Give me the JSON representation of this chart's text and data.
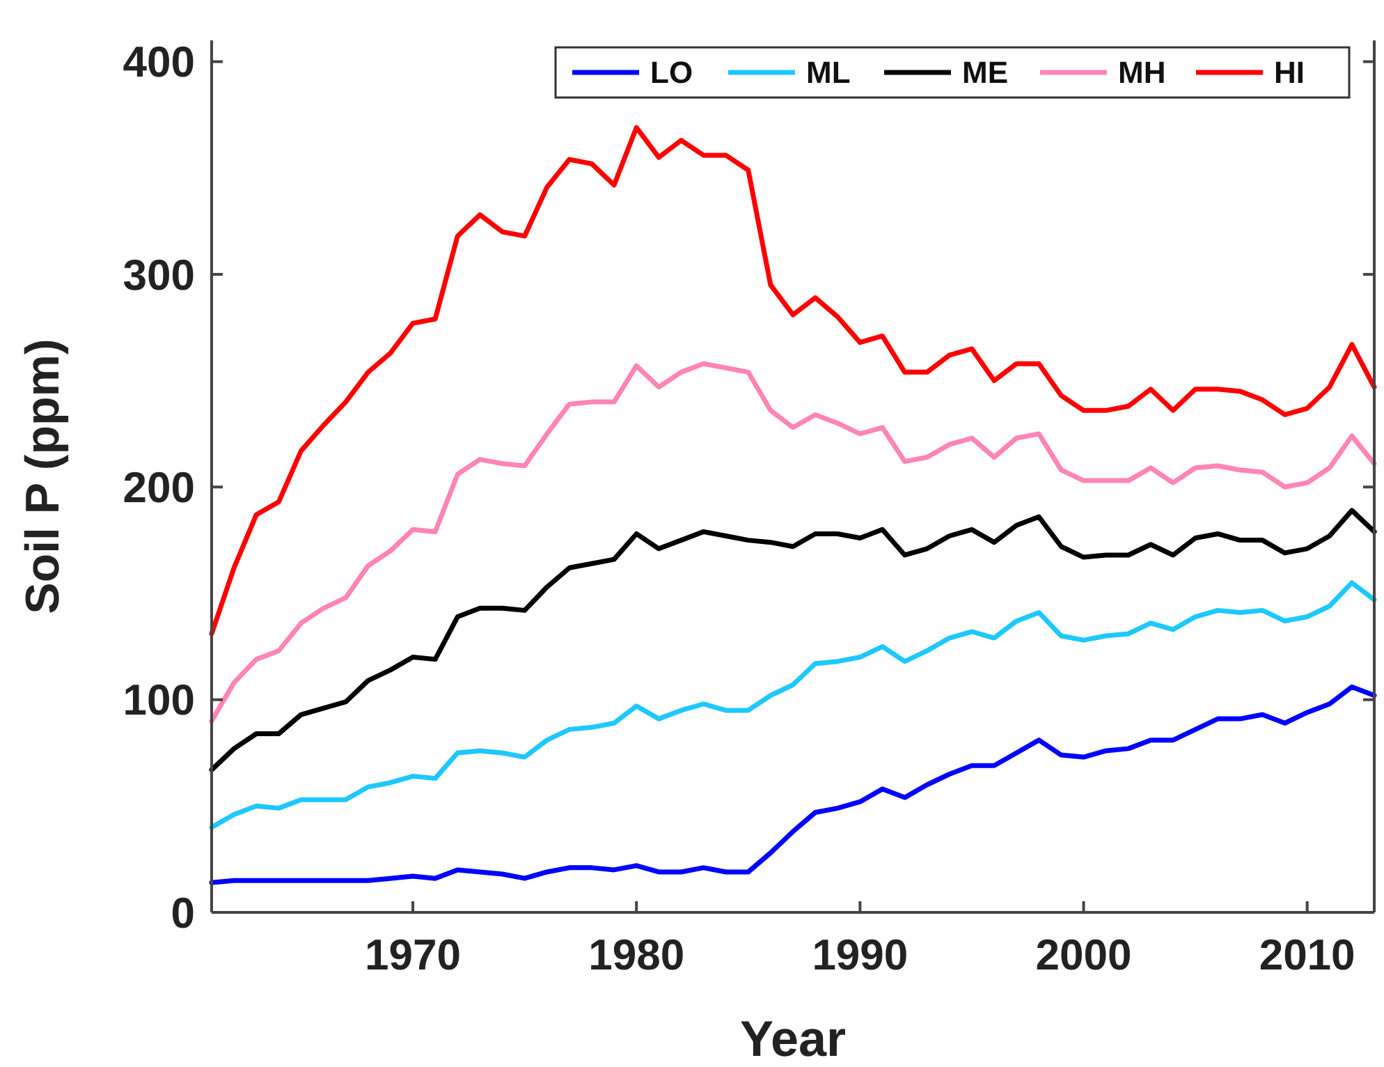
{
  "chart_data": {
    "type": "line",
    "xlabel": "Year",
    "ylabel": "Soil P (ppm)",
    "x": [
      1961,
      1962,
      1963,
      1964,
      1965,
      1966,
      1967,
      1968,
      1969,
      1970,
      1971,
      1972,
      1973,
      1974,
      1975,
      1976,
      1977,
      1978,
      1979,
      1980,
      1981,
      1982,
      1983,
      1984,
      1985,
      1986,
      1987,
      1988,
      1989,
      1990,
      1991,
      1992,
      1993,
      1994,
      1995,
      1996,
      1997,
      1998,
      1999,
      2000,
      2001,
      2002,
      2003,
      2004,
      2005,
      2006,
      2007,
      2008,
      2009,
      2010,
      2011,
      2012,
      2013
    ],
    "xlim": [
      1961,
      2013
    ],
    "xticks": [
      1970,
      1980,
      1990,
      2000,
      2010
    ],
    "ylim": [
      0,
      410
    ],
    "yticks": [
      0,
      100,
      200,
      300,
      400
    ],
    "grid": false,
    "legend": "top right",
    "line_style": "solid",
    "marker": "none",
    "series": [
      {
        "name": "LO",
        "color": "#0000ff",
        "values": [
          14,
          15,
          15,
          15,
          15,
          15,
          15,
          15,
          16,
          17,
          16,
          20,
          19,
          18,
          16,
          19,
          21,
          21,
          20,
          22,
          19,
          19,
          21,
          19,
          19,
          28,
          38,
          47,
          49,
          52,
          58,
          54,
          60,
          65,
          69,
          69,
          75,
          81,
          74,
          73,
          76,
          77,
          81,
          81,
          86,
          91,
          91,
          93,
          89,
          94,
          98,
          106,
          102
        ]
      },
      {
        "name": "ML",
        "color": "#1ec8ff",
        "values": [
          40,
          46,
          50,
          49,
          53,
          53,
          53,
          59,
          61,
          64,
          63,
          75,
          76,
          75,
          73,
          81,
          86,
          87,
          89,
          97,
          91,
          95,
          98,
          95,
          95,
          102,
          107,
          117,
          118,
          120,
          125,
          118,
          123,
          129,
          132,
          129,
          137,
          141,
          130,
          128,
          130,
          131,
          136,
          133,
          139,
          142,
          141,
          142,
          137,
          139,
          144,
          155,
          147
        ]
      },
      {
        "name": "ME",
        "color": "#000000",
        "values": [
          67,
          77,
          84,
          84,
          93,
          96,
          99,
          109,
          114,
          120,
          119,
          139,
          143,
          143,
          142,
          153,
          162,
          164,
          166,
          178,
          171,
          175,
          179,
          177,
          175,
          174,
          172,
          178,
          178,
          176,
          180,
          168,
          171,
          177,
          180,
          174,
          182,
          186,
          172,
          167,
          168,
          168,
          173,
          168,
          176,
          178,
          175,
          175,
          169,
          171,
          177,
          189,
          179
        ]
      },
      {
        "name": "MH",
        "color": "#ff85b5",
        "values": [
          90,
          108,
          119,
          123,
          136,
          143,
          148,
          163,
          170,
          180,
          179,
          206,
          213,
          211,
          210,
          225,
          239,
          240,
          240,
          257,
          247,
          254,
          258,
          256,
          254,
          236,
          228,
          234,
          230,
          225,
          228,
          212,
          214,
          220,
          223,
          214,
          223,
          225,
          208,
          203,
          203,
          203,
          209,
          202,
          209,
          210,
          208,
          207,
          200,
          202,
          209,
          224,
          211
        ]
      },
      {
        "name": "HI",
        "color": "#ff0000",
        "values": [
          131,
          162,
          187,
          193,
          217,
          229,
          240,
          254,
          263,
          277,
          279,
          318,
          328,
          320,
          318,
          341,
          354,
          352,
          342,
          369,
          355,
          363,
          356,
          356,
          349,
          295,
          281,
          289,
          280,
          268,
          271,
          254,
          254,
          262,
          265,
          250,
          258,
          258,
          243,
          236,
          236,
          238,
          246,
          236,
          246,
          246,
          245,
          241,
          234,
          237,
          247,
          267,
          247
        ]
      }
    ]
  }
}
